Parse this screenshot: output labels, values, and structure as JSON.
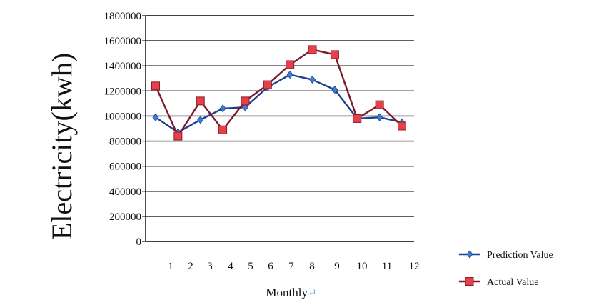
{
  "chart_data": {
    "type": "line",
    "title": "",
    "xlabel": "Monthly",
    "xlabel_mark": "↵",
    "ylabel": "Electricity(kwh)",
    "ylim": [
      0,
      1800000
    ],
    "yticks": [
      "0",
      "200000",
      "400000",
      "600000",
      "800000",
      "1000000",
      "1200000",
      "1400000",
      "1600000",
      "1800000"
    ],
    "ytick_values": [
      0,
      200000,
      400000,
      600000,
      800000,
      1000000,
      1200000,
      1400000,
      1600000,
      1800000
    ],
    "xticks": [
      "1",
      "2",
      "3",
      "4",
      "5",
      "6",
      "7",
      "8",
      "9",
      "10",
      "11",
      "12"
    ],
    "grid": true,
    "legend_position": "bottom-right",
    "series": [
      {
        "name": "Prediction Value",
        "color": "#1f3f8f",
        "marker_color": "#3a7fd0",
        "marker": "diamond",
        "values": [
          990000,
          870000,
          970000,
          1060000,
          1070000,
          1230000,
          1330000,
          1290000,
          1210000,
          980000,
          990000,
          950000
        ]
      },
      {
        "name": "Actual Value",
        "color": "#7a1a2a",
        "marker_color": "#e8404a",
        "marker": "square",
        "values": [
          1240000,
          840000,
          1120000,
          890000,
          1120000,
          1250000,
          1410000,
          1530000,
          1490000,
          980000,
          1090000,
          920000
        ]
      }
    ]
  }
}
